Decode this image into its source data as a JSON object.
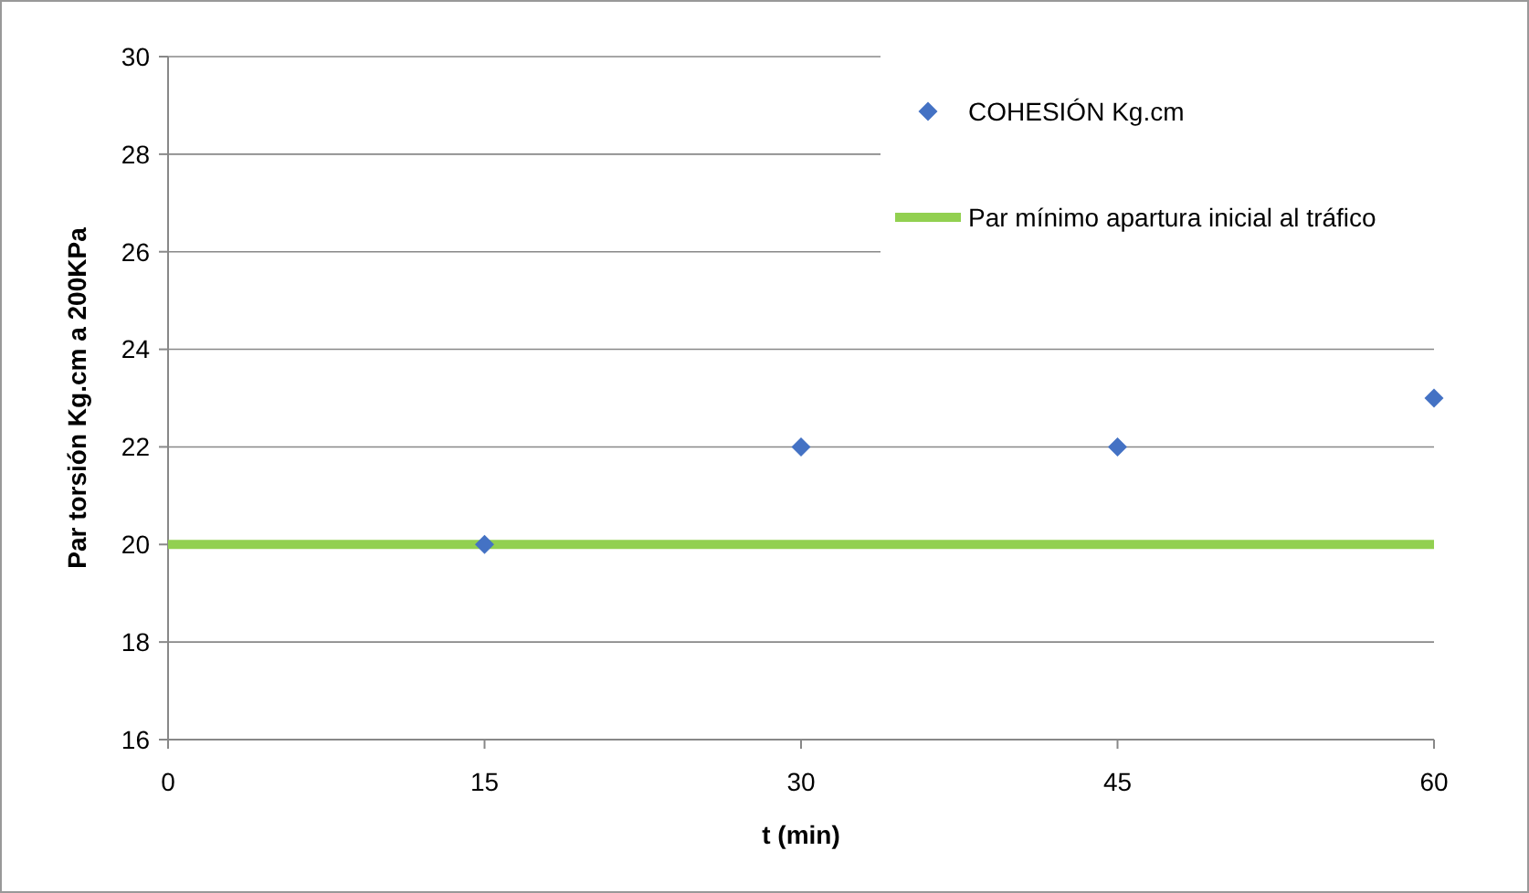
{
  "chart_data": {
    "type": "scatter",
    "xlabel": "t (min)",
    "ylabel": "Par torsión Kg.cm a 200KPa",
    "xlim": [
      0,
      60
    ],
    "xticks": [
      0,
      15,
      30,
      45,
      60
    ],
    "ylim": [
      16,
      30
    ],
    "yticks": [
      16,
      18,
      20,
      22,
      24,
      26,
      28,
      30
    ],
    "grid": "y",
    "legend": "top right",
    "series": [
      {
        "name": "COHESIÓN Kg.cm",
        "marker": "diamond",
        "color": "#4472c4",
        "x": [
          15,
          30,
          45,
          60
        ],
        "values": [
          20,
          22,
          22,
          23
        ]
      },
      {
        "name": "Par mínimo apartura inicial al tráfico",
        "type": "line",
        "color": "#92d050",
        "x": [
          0,
          60
        ],
        "values": [
          20,
          20
        ]
      }
    ]
  }
}
